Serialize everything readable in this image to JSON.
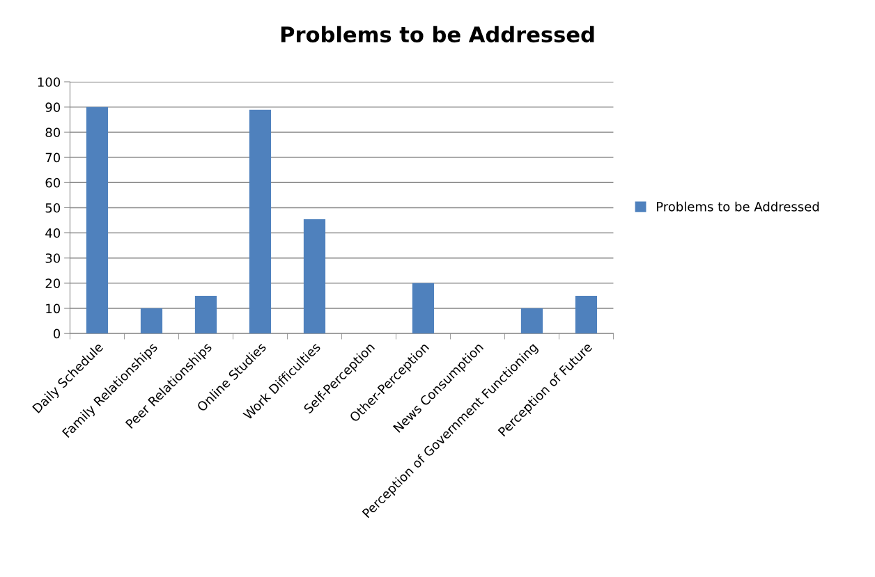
{
  "chart_data": {
    "type": "bar",
    "title": "Problems to be Addressed",
    "categories": [
      "Daily Schedule",
      "Family Relationships",
      "Peer Relationships",
      "Online Studies",
      "Work Difficulties",
      "Self-Perception",
      "Other-Perception",
      "News Consumption",
      "Perception of Government Functioning",
      "Perception of Future"
    ],
    "series": [
      {
        "name": "Problems to be Addressed",
        "color": "#4f81bd",
        "values": [
          90,
          10,
          15,
          88.9,
          45.4,
          0,
          20,
          0,
          10,
          15
        ]
      }
    ],
    "ylim": [
      0,
      100
    ],
    "yticks": [
      0,
      10,
      20,
      30,
      40,
      50,
      60,
      70,
      80,
      90,
      100
    ],
    "grid": "y",
    "legend": "right"
  }
}
